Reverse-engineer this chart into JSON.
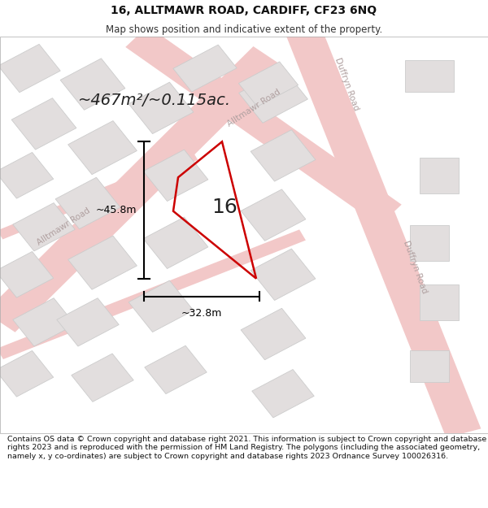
{
  "title": "16, ALLTMAWR ROAD, CARDIFF, CF23 6NQ",
  "subtitle": "Map shows position and indicative extent of the property.",
  "footer": "Contains OS data © Crown copyright and database right 2021. This information is subject to Crown copyright and database rights 2023 and is reproduced with the permission of HM Land Registry. The polygons (including the associated geometry, namely x, y co-ordinates) are subject to Crown copyright and database rights 2023 Ordnance Survey 100026316.",
  "bg_color": "#ffffff",
  "map_bg_color": "#f7f3f3",
  "block_color": "#e2dede",
  "block_edge_color": "#cccccc",
  "road_color": "#f2c8c8",
  "road_edge_color": "#e8aaaa",
  "highlight_color": "#cc0000",
  "label_16": "16",
  "area_label": "~467m²/~0.115ac.",
  "dim_h_label": "~45.8m",
  "dim_w_label": "~32.8m",
  "road_label_alltmawr_left": "Alltmawr Road",
  "road_label_alltmawr_top": "Alltmawr Road",
  "road_label_duffyn_top": "Duffryn Road",
  "road_label_duffyn_bottom": "Duffryn Road",
  "title_fontsize": 10,
  "subtitle_fontsize": 8.5,
  "footer_fontsize": 6.8,
  "area_fontsize": 14,
  "label16_fontsize": 18,
  "dim_fontsize": 9,
  "road_label_fontsize": 7.5
}
